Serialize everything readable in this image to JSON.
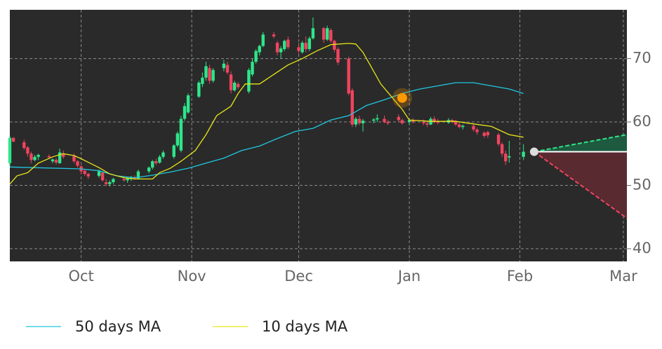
{
  "chart_data": {
    "type": "candlestick",
    "xlim": [
      0,
      173
    ],
    "ylim": [
      38,
      77.7
    ],
    "xticks": [
      {
        "value": 20,
        "label": "Oct"
      },
      {
        "value": 51,
        "label": "Nov"
      },
      {
        "value": 81,
        "label": "Dec"
      },
      {
        "value": 112,
        "label": "Jan"
      },
      {
        "value": 143,
        "label": "Feb"
      },
      {
        "value": 172,
        "label": "Mar"
      }
    ],
    "yticks": [
      40,
      50,
      60,
      70
    ],
    "grid": true,
    "up_color": "#2ee68a",
    "down_color": "#f0445e",
    "x": [
      0,
      1,
      4,
      5,
      6,
      7,
      8,
      11,
      12,
      13,
      14,
      15,
      18,
      19,
      20,
      21,
      22,
      25,
      26,
      27,
      28,
      29,
      32,
      33,
      34,
      35,
      36,
      39,
      40,
      41,
      42,
      43,
      46,
      47,
      48,
      49,
      50,
      53,
      54,
      55,
      56,
      57,
      60,
      61,
      62,
      63,
      64,
      67,
      68,
      69,
      70,
      71,
      74,
      75,
      76,
      77,
      78,
      81,
      82,
      83,
      84,
      85,
      88,
      89,
      90,
      91,
      92,
      95,
      96,
      97,
      98,
      99,
      102,
      103,
      105,
      106,
      109,
      110,
      112,
      113,
      116,
      117,
      118,
      119,
      120,
      123,
      124,
      125,
      126,
      127,
      130,
      131,
      133,
      134,
      137,
      138,
      139,
      140,
      144
    ],
    "open": [
      53.5,
      57.5,
      56.8,
      56,
      55,
      54,
      54.5,
      54.6,
      53.8,
      54,
      53.5,
      55,
      54.6,
      53.8,
      53,
      52.3,
      51.8,
      51.5,
      52,
      50.5,
      50.2,
      50.5,
      51,
      50.8,
      51,
      51.3,
      51.1,
      52.2,
      52.8,
      53.8,
      53.6,
      54.5,
      54.5,
      56.3,
      55.5,
      60.5,
      61.5,
      64,
      66,
      67,
      68.5,
      66.5,
      68.5,
      69,
      67.5,
      65,
      66,
      64.8,
      67.5,
      69.5,
      71,
      72,
      73.8,
      72.5,
      71,
      71.5,
      73,
      71.8,
      71,
      72.5,
      71.5,
      73.2,
      74.8,
      73,
      74.5,
      72.8,
      71.5,
      70,
      65,
      59.6,
      60.5,
      59.8,
      60.2,
      60.4,
      60.5,
      60,
      60.8,
      60.3,
      60,
      60.3,
      60,
      59.8,
      59.6,
      60.5,
      60.1,
      59.9,
      60.3,
      60,
      59.6,
      59.2,
      59.4,
      58.8,
      58.3,
      58.4,
      58,
      56.5,
      55,
      54.4,
      54.5
    ],
    "high": [
      57.8,
      57.6,
      57.2,
      56.2,
      55.3,
      54.8,
      55,
      54.9,
      54.2,
      54.3,
      55.8,
      55.5,
      55,
      54,
      53.2,
      52.6,
      52,
      52.5,
      52.2,
      51,
      50.8,
      51.2,
      51.4,
      51.3,
      51.5,
      51.6,
      52.5,
      53,
      54,
      54.2,
      54.8,
      55.5,
      56.5,
      58.5,
      61,
      63,
      64.5,
      66.5,
      67.8,
      69.5,
      69,
      68.5,
      69.8,
      69.5,
      68,
      66.5,
      66.3,
      68.5,
      70,
      71.5,
      72.2,
      74.2,
      74.2,
      72.8,
      72,
      73,
      73.5,
      72.5,
      72.8,
      73.5,
      73.5,
      76.5,
      75,
      75.2,
      74.8,
      73,
      71.8,
      70.3,
      65.3,
      60.8,
      61,
      60.5,
      60.6,
      61.2,
      61,
      60.3,
      61.2,
      60.5,
      60.5,
      60.6,
      60.4,
      60.2,
      60.8,
      60.9,
      60.5,
      60.6,
      60.5,
      60.3,
      59.9,
      59.6,
      59.6,
      59.1,
      58.5,
      58.6,
      58.3,
      56.8,
      55.5,
      57,
      56.5
    ],
    "low": [
      53,
      56.8,
      55.6,
      54.5,
      53.5,
      53.8,
      54,
      54.2,
      53.5,
      53.3,
      53.4,
      54.2,
      53.5,
      52.8,
      51.8,
      51.5,
      51,
      51.2,
      50.6,
      49.9,
      49.8,
      50.2,
      50.6,
      50.4,
      50.7,
      50.9,
      51,
      51.9,
      52.5,
      53.2,
      53.4,
      54.2,
      54.2,
      56,
      55.2,
      60.2,
      61.3,
      63.8,
      65.5,
      66.5,
      66,
      66.2,
      68,
      67.5,
      64.5,
      64.8,
      65.2,
      64.5,
      67.2,
      69.2,
      70.5,
      71.8,
      73.2,
      70.5,
      70,
      71.2,
      71.5,
      70.8,
      70.8,
      71,
      71.2,
      73,
      72.5,
      72.8,
      72.5,
      71,
      69,
      64.2,
      59.2,
      59.2,
      59.5,
      58.5,
      59.8,
      60,
      59.8,
      59.5,
      60,
      59.6,
      59.6,
      59.8,
      59.5,
      59.2,
      59.5,
      59.8,
      59.6,
      59.7,
      59.8,
      59.4,
      59,
      58.8,
      58.5,
      58,
      57.5,
      57.5,
      56.2,
      54.5,
      53.2,
      53.6,
      54
    ],
    "close": [
      57.5,
      56.9,
      55.9,
      55,
      54,
      54.5,
      54.8,
      54.4,
      54.1,
      53.6,
      55.2,
      54.5,
      53.8,
      53.1,
      52.2,
      51.8,
      51.4,
      52.2,
      50.8,
      50.2,
      50.5,
      51,
      50.8,
      51.1,
      51.3,
      51.1,
      52.2,
      52.8,
      53.8,
      53.5,
      54.5,
      55.2,
      56.3,
      58.2,
      60.5,
      62.5,
      64.2,
      66.2,
      67,
      68.8,
      66.5,
      68.2,
      69.2,
      67.8,
      65,
      66.2,
      65.5,
      68.2,
      69.5,
      71.2,
      72,
      73.8,
      73.5,
      71,
      71.6,
      72.8,
      71.8,
      71.2,
      72.5,
      71.5,
      73.2,
      74.8,
      73,
      74.8,
      72.8,
      71.4,
      69.4,
      64.5,
      59.6,
      60.5,
      59.8,
      60.2,
      60.4,
      60.6,
      60,
      59.8,
      60.3,
      59.8,
      60.3,
      60,
      59.8,
      59.6,
      60.5,
      60.1,
      59.9,
      60.3,
      60,
      59.6,
      59.2,
      59.4,
      58.8,
      58.4,
      57.8,
      57.9,
      56.5,
      55,
      53.8,
      54.6,
      55.3
    ],
    "series": [
      {
        "name": "50 days MA",
        "color": "#1fc8e0",
        "x": [
          0,
          20,
          25,
          30,
          35,
          40,
          45,
          50,
          55,
          60,
          65,
          70,
          75,
          80,
          85,
          90,
          95,
          100,
          105,
          110,
          115,
          120,
          125,
          130,
          135,
          140,
          144
        ],
        "values": [
          52.9,
          52.6,
          52.3,
          51.5,
          51.2,
          51.6,
          52.1,
          52.7,
          53.5,
          54.3,
          55.5,
          56.2,
          57.4,
          58.5,
          59,
          60.3,
          61,
          62.6,
          63.5,
          64.5,
          65.2,
          65.7,
          66.2,
          66.2,
          65.7,
          65.2,
          64.5
        ]
      },
      {
        "name": "10 days MA",
        "color": "#e6e61a",
        "x": [
          0,
          2,
          5,
          8,
          12,
          15,
          18,
          20,
          25,
          28,
          32,
          35,
          40,
          42,
          45,
          48,
          52,
          55,
          58,
          62,
          64,
          66,
          70,
          74,
          78,
          82,
          86,
          90,
          95,
          97,
          99,
          101,
          104,
          107,
          110,
          112,
          118,
          125,
          130,
          135,
          140,
          144
        ],
        "values": [
          50.2,
          51.5,
          52,
          53.5,
          54.5,
          55,
          54.7,
          54.2,
          52.8,
          51.8,
          51.2,
          51,
          51,
          52,
          52.7,
          53.8,
          55.5,
          58,
          61,
          62.5,
          64.5,
          66,
          66,
          67.5,
          69,
          70,
          71.2,
          72.2,
          72.4,
          72.3,
          71,
          69,
          66,
          64,
          62,
          60.3,
          60.1,
          60.1,
          59.7,
          59.3,
          58,
          57.6
        ]
      }
    ],
    "marker": {
      "x": 110,
      "y": 63.8,
      "color": "#ff9900"
    },
    "forecast": {
      "x": [
        147,
        173
      ],
      "center": 55.3,
      "upper": 58,
      "lower": 44.8
    }
  }
}
